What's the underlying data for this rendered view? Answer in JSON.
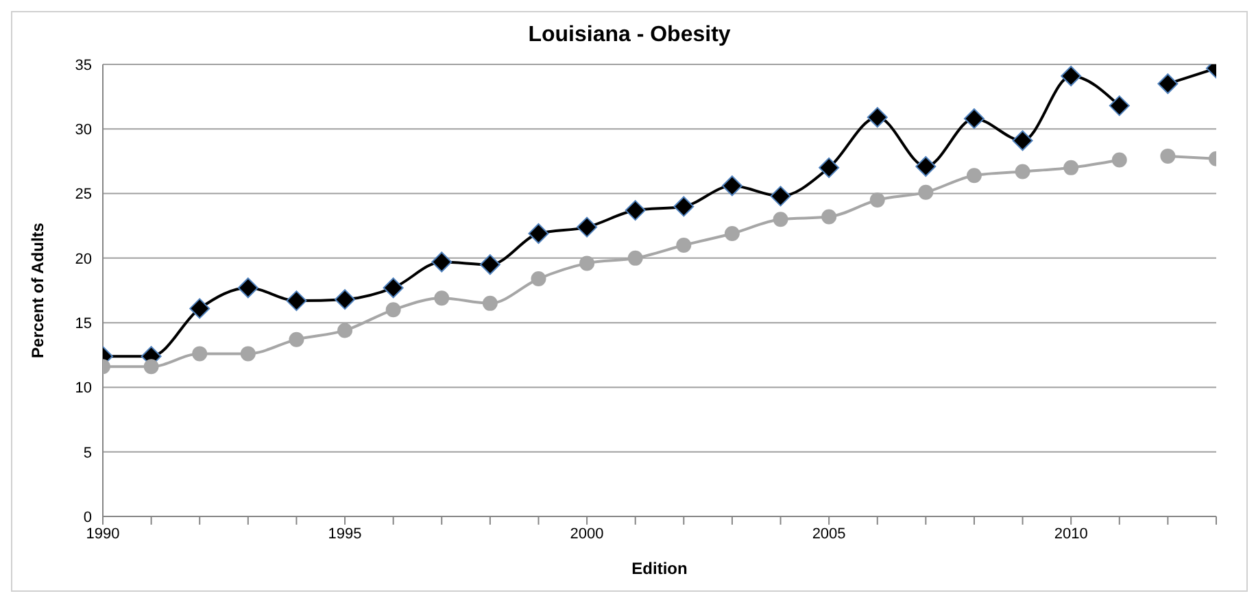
{
  "chart_data": {
    "type": "line",
    "title": "Louisiana - Obesity",
    "xlabel": "Edition",
    "ylabel": "Percent of Adults",
    "series": [
      {
        "color": "#000000",
        "marker": "diamond",
        "x": [
          1990,
          1991,
          1992,
          1993,
          1994,
          1995,
          1996,
          1997,
          1998,
          1999,
          2000,
          2001,
          2002,
          2003,
          2004,
          2005,
          2006,
          2007,
          2008,
          2009,
          2010,
          2011
        ],
        "values": [
          12.4,
          12.4,
          16.1,
          17.7,
          16.7,
          16.8,
          17.7,
          19.7,
          19.5,
          21.9,
          22.4,
          23.7,
          24.0,
          25.6,
          24.8,
          27.0,
          30.9,
          27.1,
          30.8,
          29.1,
          34.1,
          31.8
        ]
      },
      {
        "color": "#000000",
        "marker": "diamond",
        "x": [
          2012,
          2013
        ],
        "values": [
          33.5,
          34.7
        ]
      },
      {
        "color": "#a6a6a6",
        "marker": "circle",
        "x": [
          1990,
          1991,
          1992,
          1993,
          1994,
          1995,
          1996,
          1997,
          1998,
          1999,
          2000,
          2001,
          2002,
          2003,
          2004,
          2005,
          2006,
          2007,
          2008,
          2009,
          2010,
          2011
        ],
        "values": [
          11.6,
          11.6,
          12.6,
          12.6,
          13.7,
          14.4,
          16.0,
          16.9,
          16.5,
          18.4,
          19.6,
          20.0,
          21.0,
          21.9,
          23.0,
          23.2,
          24.5,
          25.1,
          26.4,
          26.7,
          27.0,
          27.6
        ]
      },
      {
        "color": "#a6a6a6",
        "marker": "circle",
        "x": [
          2012,
          2013
        ],
        "values": [
          27.9,
          27.7
        ]
      }
    ],
    "xlim": [
      1990,
      2013
    ],
    "xticks": [
      1990,
      {
        "value": 1991,
        "label": null
      },
      {
        "value": 1992,
        "label": null
      },
      {
        "value": 1993,
        "label": null
      },
      {
        "value": 1994,
        "label": null
      },
      1995,
      {
        "value": 1996,
        "label": null
      },
      {
        "value": 1997,
        "label": null
      },
      {
        "value": 1998,
        "label": null
      },
      {
        "value": 1999,
        "label": null
      },
      2000,
      {
        "value": 2001,
        "label": null
      },
      {
        "value": 2002,
        "label": null
      },
      {
        "value": 2003,
        "label": null
      },
      {
        "value": 2004,
        "label": null
      },
      2005,
      {
        "value": 2006,
        "label": null
      },
      {
        "value": 2007,
        "label": null
      },
      {
        "value": 2008,
        "label": null
      },
      {
        "value": 2009,
        "label": null
      },
      2010,
      {
        "value": 2011,
        "label": null
      },
      {
        "value": 2012,
        "label": null
      },
      {
        "value": 2013,
        "label": null
      }
    ],
    "ylim": [
      0,
      35
    ],
    "yticks": [
      0,
      5,
      10,
      15,
      20,
      25,
      30,
      35
    ],
    "grid": "y",
    "legend": false,
    "line_style": "solid"
  }
}
